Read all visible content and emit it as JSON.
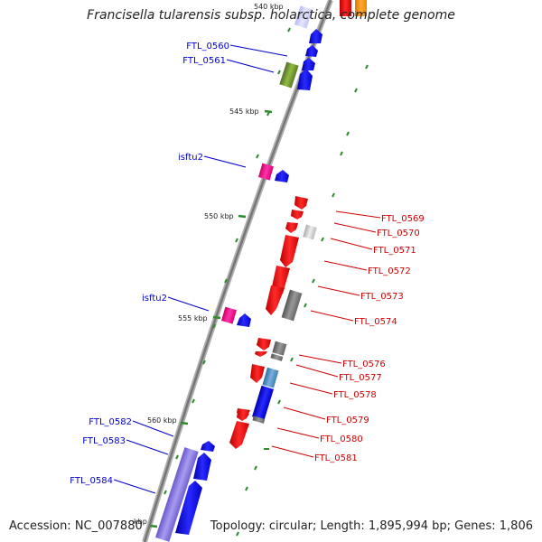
{
  "header": {
    "title": "Francisella tularensis subsp. holarctica, complete genome"
  },
  "footer": {
    "accession": "Accession: NC_007880",
    "summary": "Topology: circular; Length: 1,895,994 bp; Genes: 1,806"
  },
  "ruler": {
    "ticks": [
      "540 kbp",
      "545 kbp",
      "550 kbp",
      "555 kbp",
      "560 kbp",
      "kbp"
    ]
  },
  "genes": {
    "left": [
      "FTL_0560",
      "FTL_0561",
      "isftu2",
      "isftu2",
      "FTL_0582",
      "FTL_0583",
      "FTL_0584"
    ],
    "right": [
      "FTL_0569",
      "FTL_0570",
      "FTL_0571",
      "FTL_0572",
      "FTL_0573",
      "FTL_0574",
      "FTL_0576",
      "FTL_0577",
      "FTL_0578",
      "FTL_0579",
      "FTL_0580",
      "FTL_0581"
    ]
  },
  "colors": {
    "forward_strand": "#0000ff",
    "reverse_strand": "#ff0000",
    "transposase": "#ff1493",
    "pseudogene": "#808080",
    "label_left": "#0000cc",
    "label_right": "#cc0000",
    "backbone": "#888888"
  }
}
